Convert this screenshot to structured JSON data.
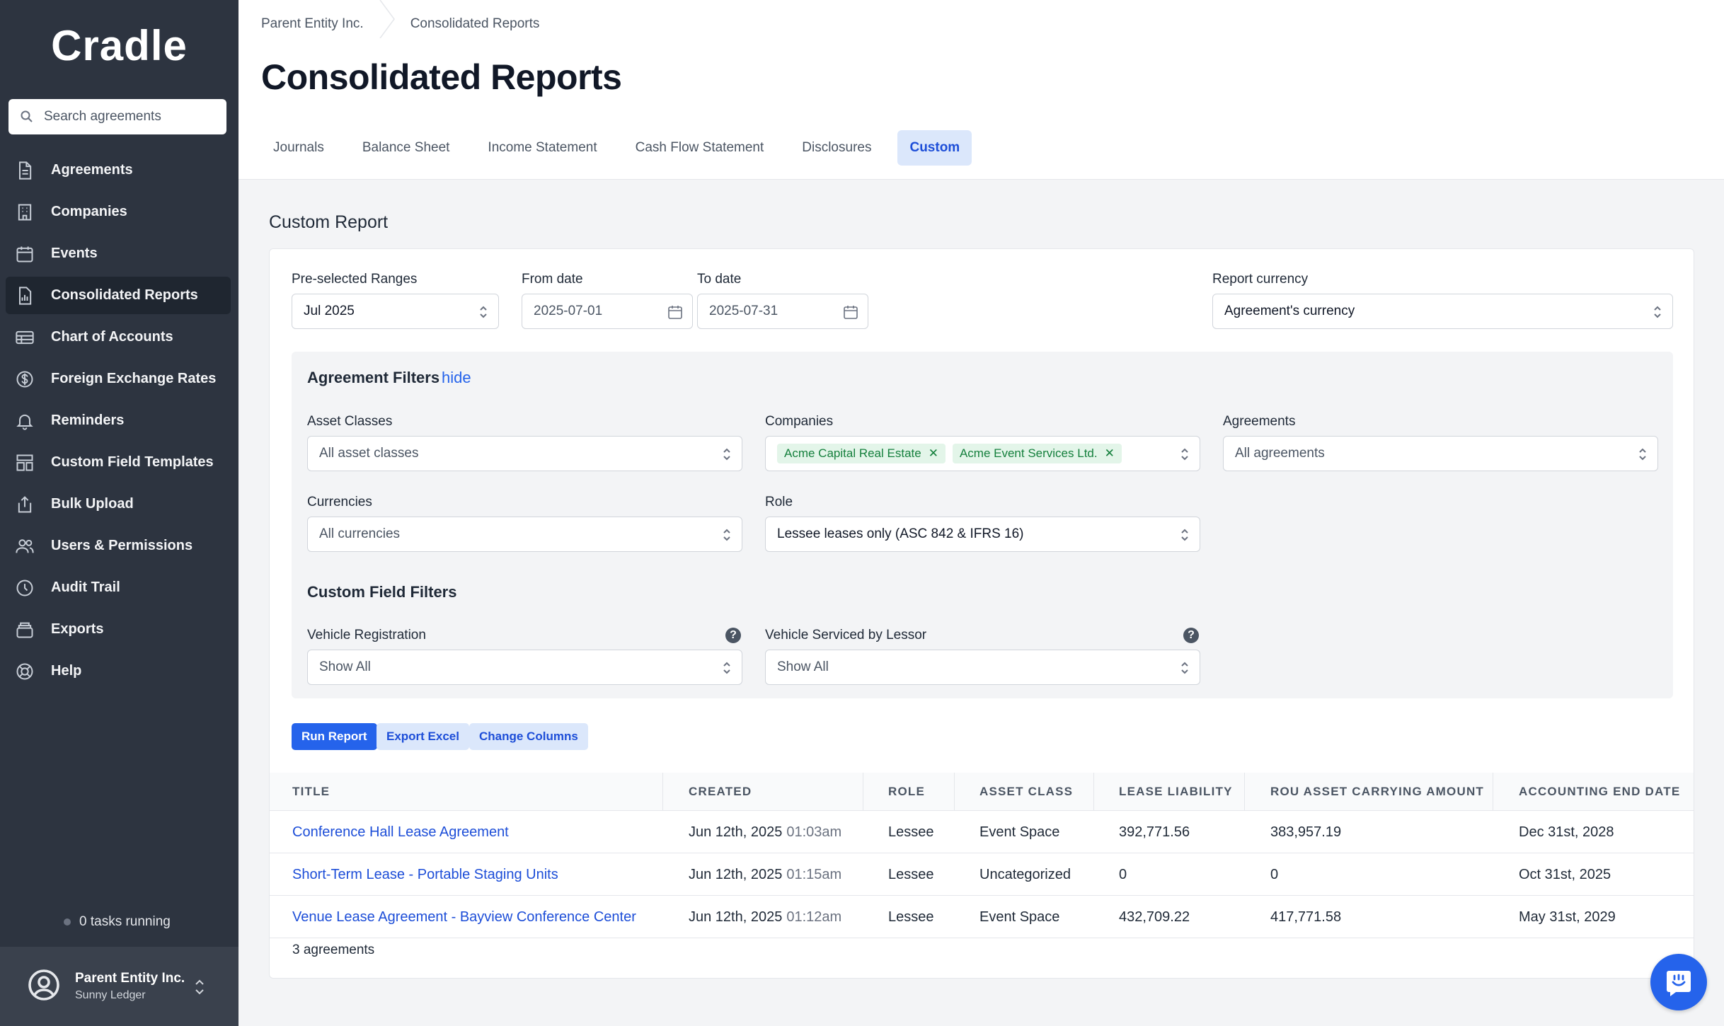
{
  "app": {
    "logo": "Cradle"
  },
  "sidebar": {
    "search_placeholder": "Search agreements",
    "items": [
      {
        "label": "Agreements",
        "icon": "document-icon"
      },
      {
        "label": "Companies",
        "icon": "building-icon"
      },
      {
        "label": "Events",
        "icon": "calendar-icon"
      },
      {
        "label": "Consolidated Reports",
        "icon": "chart-icon",
        "active": true
      },
      {
        "label": "Chart of Accounts",
        "icon": "table-icon"
      },
      {
        "label": "Foreign Exchange Rates",
        "icon": "dollar-icon"
      },
      {
        "label": "Reminders",
        "icon": "bell-icon"
      },
      {
        "label": "Custom Field Templates",
        "icon": "template-icon"
      },
      {
        "label": "Bulk Upload",
        "icon": "upload-icon"
      },
      {
        "label": "Users & Permissions",
        "icon": "users-icon"
      },
      {
        "label": "Audit Trail",
        "icon": "clock-icon"
      },
      {
        "label": "Exports",
        "icon": "export-icon"
      },
      {
        "label": "Help",
        "icon": "lifebuoy-icon"
      }
    ],
    "tasks": "0 tasks running",
    "footer": {
      "org": "Parent Entity Inc.",
      "user": "Sunny Ledger"
    }
  },
  "header": {
    "breadcrumb": [
      "Parent Entity Inc.",
      "Consolidated Reports"
    ],
    "title": "Consolidated Reports",
    "tabs": [
      "Journals",
      "Balance Sheet",
      "Income Statement",
      "Cash Flow Statement",
      "Disclosures",
      "Custom"
    ],
    "active_tab": "Custom"
  },
  "report": {
    "section_title": "Custom Report",
    "preselected_label": "Pre-selected Ranges",
    "preselected_value": "Jul 2025",
    "from_label": "From date",
    "from_value": "2025-07-01",
    "to_label": "To date",
    "to_value": "2025-07-31",
    "currency_label": "Report currency",
    "currency_value": "Agreement's currency"
  },
  "filters": {
    "title": "Agreement Filters",
    "hide_link": "hide",
    "asset_classes_label": "Asset Classes",
    "asset_classes_value": "All asset classes",
    "companies_label": "Companies",
    "companies_chips": [
      "Acme Capital Real Estate",
      "Acme Event Services Ltd."
    ],
    "agreements_label": "Agreements",
    "agreements_value": "All agreements",
    "currencies_label": "Currencies",
    "currencies_value": "All currencies",
    "role_label": "Role",
    "role_value": "Lessee leases only (ASC 842 & IFRS 16)",
    "custom_title": "Custom Field Filters",
    "vehicle_reg_label": "Vehicle Registration",
    "vehicle_reg_value": "Show All",
    "vehicle_serviced_label": "Vehicle Serviced by Lessor",
    "vehicle_serviced_value": "Show All"
  },
  "actions": {
    "run": "Run Report",
    "export": "Export Excel",
    "columns": "Change Columns"
  },
  "table": {
    "columns": [
      "TITLE",
      "CREATED",
      "ROLE",
      "ASSET CLASS",
      "LEASE LIABILITY",
      "ROU ASSET CARRYING AMOUNT",
      "ACCOUNTING END DATE"
    ],
    "rows": [
      {
        "title": "Conference Hall Lease Agreement",
        "created_date": "Jun 12th, 2025",
        "created_time": "01:03am",
        "role": "Lessee",
        "asset_class": "Event Space",
        "lease_liability": "392,771.56",
        "rou": "383,957.19",
        "end_date": "Dec 31st, 2028"
      },
      {
        "title": "Short-Term Lease - Portable Staging Units",
        "created_date": "Jun 12th, 2025",
        "created_time": "01:15am",
        "role": "Lessee",
        "asset_class": "Uncategorized",
        "lease_liability": "0",
        "rou": "0",
        "end_date": "Oct 31st, 2025"
      },
      {
        "title": "Venue Lease Agreement - Bayview Conference Center",
        "created_date": "Jun 12th, 2025",
        "created_time": "01:12am",
        "role": "Lessee",
        "asset_class": "Event Space",
        "lease_liability": "432,709.22",
        "rou": "417,771.58",
        "end_date": "May 31st, 2029"
      }
    ],
    "count": "3 agreements"
  },
  "colors": {
    "sidebar": "#2d3440",
    "accent": "#2563eb",
    "chip_bg": "#e3f5e9",
    "chip_text": "#15803d"
  }
}
